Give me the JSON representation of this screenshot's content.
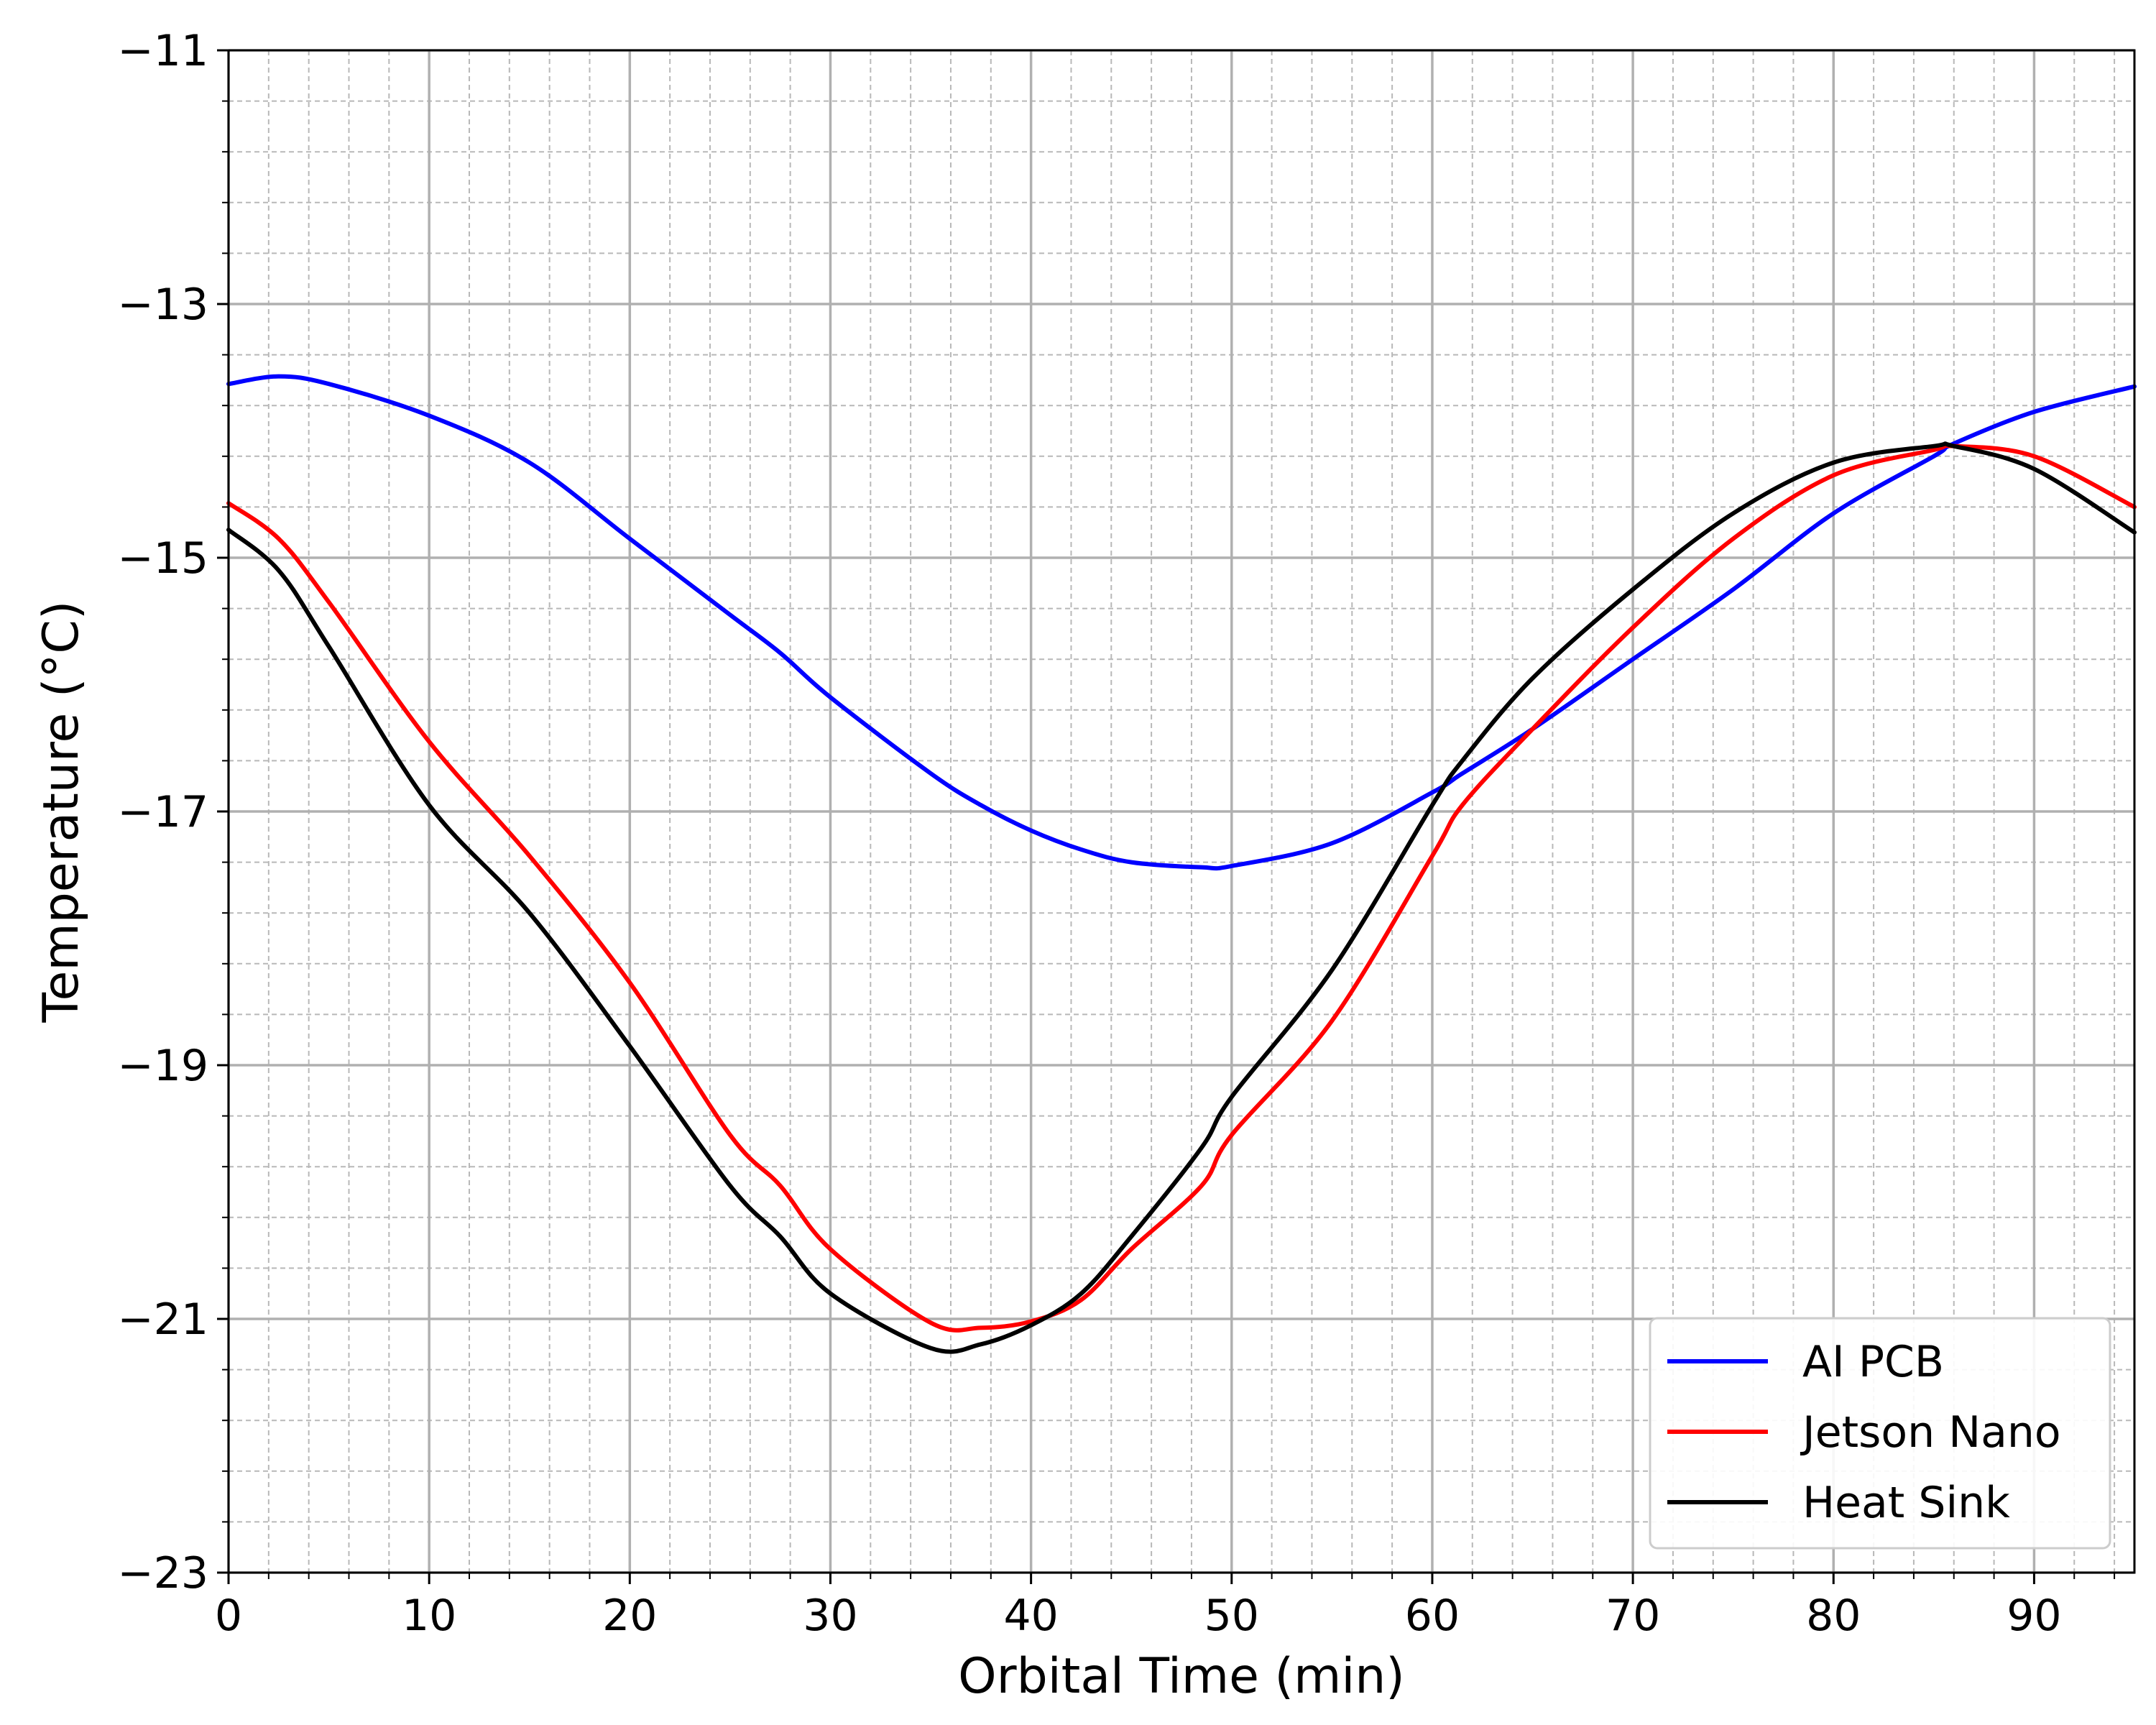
{
  "chart_data": {
    "type": "line",
    "xlabel": "Orbital Time (min)",
    "ylabel": "Temperature (°C)",
    "xlim": [
      0,
      95
    ],
    "ylim": [
      -23,
      -11
    ],
    "xticks": [
      0,
      10,
      20,
      30,
      40,
      50,
      60,
      70,
      80,
      90
    ],
    "xtick_labels": [
      "0",
      "10",
      "20",
      "30",
      "40",
      "50",
      "60",
      "70",
      "80",
      "90"
    ],
    "yticks": [
      -23,
      -21,
      -19,
      -17,
      -15,
      -13,
      -11
    ],
    "ytick_labels": [
      "−23",
      "−21",
      "−19",
      "−17",
      "−15",
      "−13",
      "−11"
    ],
    "x_minor_step": 2,
    "y_minor_step": 0.4,
    "grid": true,
    "legend_position": "bottom-right",
    "x": [
      0,
      2.5,
      5,
      10,
      15,
      20,
      25,
      27.5,
      30,
      35,
      37.5,
      40,
      42.5,
      45,
      48.5,
      50,
      55,
      60,
      61.5,
      65,
      70,
      75,
      80,
      85,
      86,
      90,
      95
    ],
    "series": [
      {
        "name": "AI PCB",
        "color": "#0000ff",
        "values": [
          -13.63,
          -13.57,
          -13.63,
          -13.88,
          -14.25,
          -14.85,
          -15.45,
          -15.75,
          -16.1,
          -16.7,
          -16.95,
          -17.15,
          -17.3,
          -17.4,
          -17.44,
          -17.43,
          -17.25,
          -16.85,
          -16.7,
          -16.35,
          -15.8,
          -15.25,
          -14.65,
          -14.2,
          -14.1,
          -13.85,
          -13.65
        ]
      },
      {
        "name": "Jetson Nano",
        "color": "#ff0000",
        "values": [
          -14.57,
          -14.85,
          -15.35,
          -16.45,
          -17.35,
          -18.35,
          -19.55,
          -19.95,
          -20.45,
          -21.03,
          -21.07,
          -21.02,
          -20.85,
          -20.45,
          -19.95,
          -19.55,
          -18.65,
          -17.35,
          -16.95,
          -16.35,
          -15.55,
          -14.85,
          -14.35,
          -14.15,
          -14.12,
          -14.2,
          -14.6
        ]
      },
      {
        "name": "Heat Sink",
        "color": "#000000",
        "values": [
          -14.78,
          -15.1,
          -15.7,
          -16.95,
          -17.8,
          -18.85,
          -19.95,
          -20.35,
          -20.8,
          -21.23,
          -21.2,
          -21.05,
          -20.8,
          -20.35,
          -19.65,
          -19.25,
          -18.25,
          -16.95,
          -16.6,
          -15.95,
          -15.25,
          -14.65,
          -14.25,
          -14.12,
          -14.12,
          -14.3,
          -14.8
        ]
      }
    ]
  }
}
